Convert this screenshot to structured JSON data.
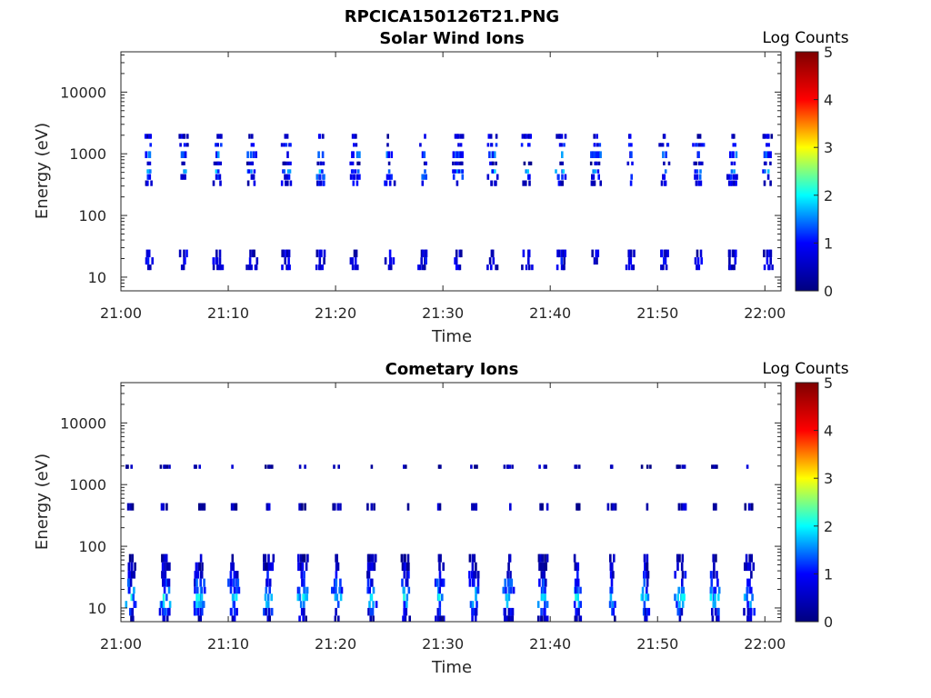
{
  "figure": {
    "filename_title": "RPCICA150126T21.PNG"
  },
  "colormap": {
    "name": "jet",
    "stops": [
      "#00007f",
      "#0000ff",
      "#00ffff",
      "#ffff00",
      "#ff0000",
      "#7f0000"
    ]
  },
  "chart_data": [
    {
      "type": "heatmap",
      "title": "Solar Wind Ions",
      "xlabel": "Time",
      "ylabel": "Energy (eV)",
      "x_unit": "minutes after 21:00",
      "xlim": [
        0,
        61.5
      ],
      "x_ticks": [
        {
          "value": 0,
          "label": "21:00"
        },
        {
          "value": 10,
          "label": "21:10"
        },
        {
          "value": 20,
          "label": "21:20"
        },
        {
          "value": 30,
          "label": "21:30"
        },
        {
          "value": 40,
          "label": "21:40"
        },
        {
          "value": 50,
          "label": "21:50"
        },
        {
          "value": 60,
          "label": "22:00"
        }
      ],
      "y_scale": "log",
      "ylim": [
        6,
        45000
      ],
      "y_ticks": [
        {
          "value": 10,
          "label": "10"
        },
        {
          "value": 100,
          "label": "100"
        },
        {
          "value": 1000,
          "label": "1000"
        },
        {
          "value": 10000,
          "label": "10000"
        }
      ],
      "colorbar": {
        "label": "Log Counts",
        "range": [
          0,
          5
        ],
        "ticks": [
          "0",
          "1",
          "2",
          "3",
          "4",
          "5"
        ]
      },
      "scan_period_min": 3.2,
      "scan_start_min": 2.6,
      "scan_count": 19,
      "bands": [
        {
          "energy_min": 1750,
          "energy_max": 2100,
          "log_counts": 0.6
        },
        {
          "energy_min": 1300,
          "energy_max": 1500,
          "log_counts": 0.8
        },
        {
          "energy_min": 850,
          "energy_max": 1100,
          "log_counts": 1.2
        },
        {
          "energy_min": 650,
          "energy_max": 750,
          "log_counts": 0.5
        },
        {
          "energy_min": 480,
          "energy_max": 560,
          "log_counts": 1.4
        },
        {
          "energy_min": 380,
          "energy_max": 470,
          "log_counts": 1.0
        },
        {
          "energy_min": 300,
          "energy_max": 370,
          "log_counts": 0.7
        },
        {
          "energy_min": 21,
          "energy_max": 28,
          "log_counts": 0.6
        },
        {
          "energy_min": 16,
          "energy_max": 21,
          "log_counts": 0.7
        },
        {
          "energy_min": 13,
          "energy_max": 16,
          "log_counts": 0.6
        }
      ]
    },
    {
      "type": "heatmap",
      "title": "Cometary Ions",
      "xlabel": "Time",
      "ylabel": "Energy (eV)",
      "x_unit": "minutes after 21:00",
      "xlim": [
        0,
        61.5
      ],
      "x_ticks": [
        {
          "value": 0,
          "label": "21:00"
        },
        {
          "value": 10,
          "label": "21:10"
        },
        {
          "value": 20,
          "label": "21:20"
        },
        {
          "value": 30,
          "label": "21:30"
        },
        {
          "value": 40,
          "label": "21:40"
        },
        {
          "value": 50,
          "label": "21:50"
        },
        {
          "value": 60,
          "label": "22:00"
        }
      ],
      "y_scale": "log",
      "ylim": [
        6,
        45000
      ],
      "y_ticks": [
        {
          "value": 10,
          "label": "10"
        },
        {
          "value": 100,
          "label": "100"
        },
        {
          "value": 1000,
          "label": "1000"
        },
        {
          "value": 10000,
          "label": "10000"
        }
      ],
      "colorbar": {
        "label": "Log Counts",
        "range": [
          0,
          5
        ],
        "ticks": [
          "0",
          "1",
          "2",
          "3",
          "4",
          "5"
        ]
      },
      "scan_period_min": 3.2,
      "scan_start_min": 0.9,
      "scan_count": 19,
      "bands": [
        {
          "energy_min": 1800,
          "energy_max": 2100,
          "log_counts": 0.3
        },
        {
          "energy_min": 380,
          "energy_max": 500,
          "log_counts": 0.4
        },
        {
          "energy_min": 55,
          "energy_max": 75,
          "log_counts": 0.3
        },
        {
          "energy_min": 40,
          "energy_max": 55,
          "log_counts": 0.5
        },
        {
          "energy_min": 30,
          "energy_max": 40,
          "log_counts": 0.7
        },
        {
          "energy_min": 22,
          "energy_max": 30,
          "log_counts": 1.0
        },
        {
          "energy_min": 17,
          "energy_max": 22,
          "log_counts": 1.3
        },
        {
          "energy_min": 13,
          "energy_max": 17,
          "log_counts": 1.7
        },
        {
          "energy_min": 10,
          "energy_max": 13,
          "log_counts": 1.4
        },
        {
          "energy_min": 7.5,
          "energy_max": 10,
          "log_counts": 0.9
        },
        {
          "energy_min": 6,
          "energy_max": 7.5,
          "log_counts": 0.5
        }
      ]
    }
  ]
}
